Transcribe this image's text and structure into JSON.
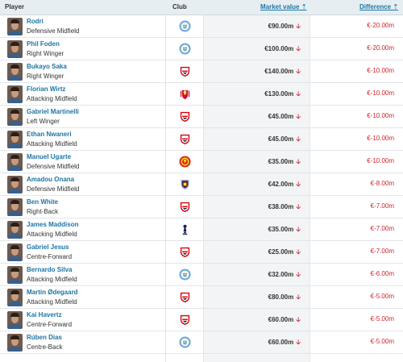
{
  "headers": {
    "player": "Player",
    "club": "Club",
    "market_value": "Market value ⇡",
    "difference": "Difference ⇡"
  },
  "colors": {
    "link": "#1d75a3",
    "negative": "#d0222d",
    "header_bg": "#e6eef2",
    "value_cell_bg": "#f2f4f5"
  },
  "rows": [
    {
      "name": "Rodri",
      "position": "Defensive Midfield",
      "club_icon": "man-city-crest-icon",
      "market_value": "€90.00m",
      "difference": "€-20.00m"
    },
    {
      "name": "Phil Foden",
      "position": "Right Winger",
      "club_icon": "man-city-crest-icon",
      "market_value": "€100.00m",
      "difference": "€-20.00m"
    },
    {
      "name": "Bukayo Saka",
      "position": "Right Winger",
      "club_icon": "arsenal-crest-icon",
      "market_value": "€140.00m",
      "difference": "€-10.00m"
    },
    {
      "name": "Florian Wirtz",
      "position": "Attacking Midfield",
      "club_icon": "liverpool-crest-icon",
      "market_value": "€130.00m",
      "difference": "€-10.00m"
    },
    {
      "name": "Gabriel Martinelli",
      "position": "Left Winger",
      "club_icon": "arsenal-crest-icon",
      "market_value": "€45.00m",
      "difference": "€-10.00m"
    },
    {
      "name": "Ethan Nwaneri",
      "position": "Attacking Midfield",
      "club_icon": "arsenal-crest-icon",
      "market_value": "€45.00m",
      "difference": "€-10.00m"
    },
    {
      "name": "Manuel Ugarte",
      "position": "Defensive Midfield",
      "club_icon": "man-united-crest-icon",
      "market_value": "€35.00m",
      "difference": "€-10.00m"
    },
    {
      "name": "Amadou Onana",
      "position": "Defensive Midfield",
      "club_icon": "aston-villa-crest-icon",
      "market_value": "€42.00m",
      "difference": "€-8.00m"
    },
    {
      "name": "Ben White",
      "position": "Right-Back",
      "club_icon": "arsenal-crest-icon",
      "market_value": "€38.00m",
      "difference": "€-7.00m"
    },
    {
      "name": "James Maddison",
      "position": "Attacking Midfield",
      "club_icon": "tottenham-crest-icon",
      "market_value": "€35.00m",
      "difference": "€-7.00m"
    },
    {
      "name": "Gabriel Jesus",
      "position": "Centre-Forward",
      "club_icon": "arsenal-crest-icon",
      "market_value": "€25.00m",
      "difference": "€-7.00m"
    },
    {
      "name": "Bernardo Silva",
      "position": "Attacking Midfield",
      "club_icon": "man-city-crest-icon",
      "market_value": "€32.00m",
      "difference": "€-6.00m"
    },
    {
      "name": "Martin Ødegaard",
      "position": "Attacking Midfield",
      "club_icon": "arsenal-crest-icon",
      "market_value": "€80.00m",
      "difference": "€-5.00m"
    },
    {
      "name": "Kai Havertz",
      "position": "Centre-Forward",
      "club_icon": "arsenal-crest-icon",
      "market_value": "€60.00m",
      "difference": "€-5.00m"
    },
    {
      "name": "Rúben Dias",
      "position": "Centre-Back",
      "club_icon": "man-city-crest-icon",
      "market_value": "€60.00m",
      "difference": "€-5.00m"
    }
  ],
  "trend_icon": "down-arrow-icon"
}
